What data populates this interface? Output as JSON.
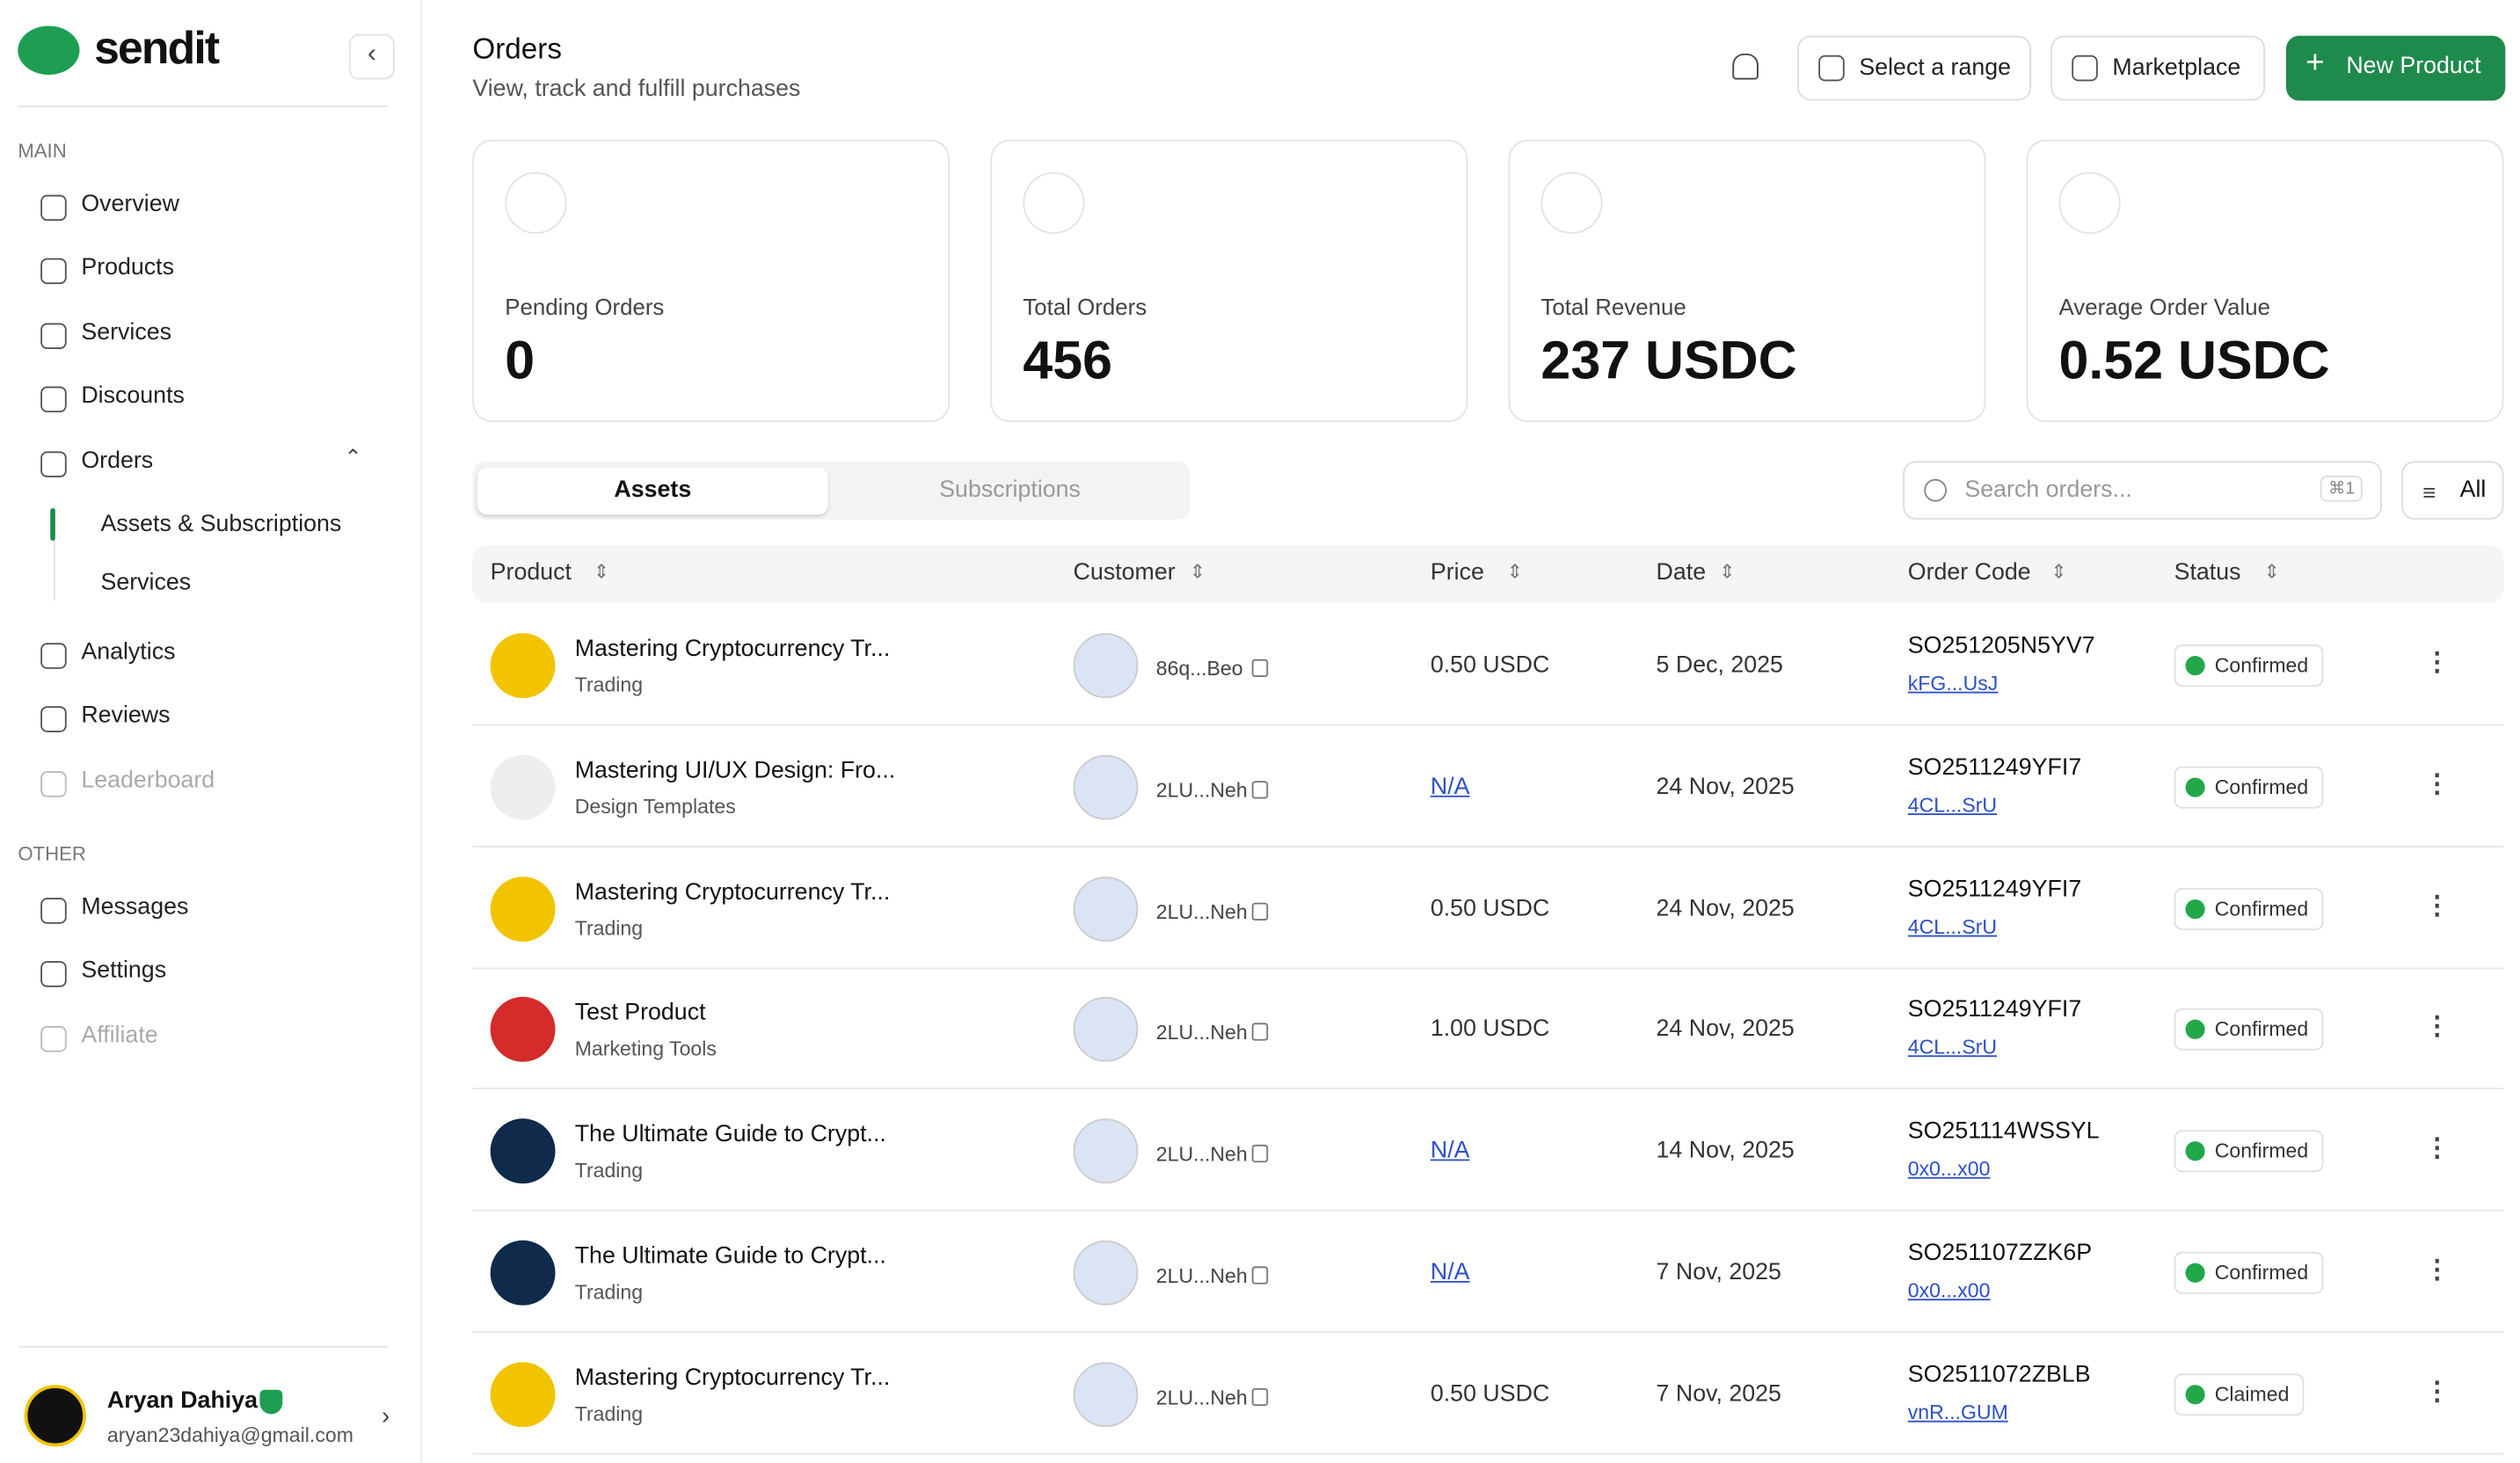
{
  "sidebar": {
    "brand": "sendit",
    "main_label": "MAIN",
    "main_items": [
      "Overview",
      "Products",
      "Services",
      "Discounts",
      "Orders"
    ],
    "orders_subitems": [
      "Assets & Subscriptions",
      "Services"
    ],
    "more_items": [
      "Analytics",
      "Reviews",
      "Leaderboard"
    ],
    "other_label": "OTHER",
    "other_items": [
      "Messages",
      "Settings",
      "Affiliate"
    ],
    "user": {
      "name": "Aryan Dahiya",
      "email": "aryan23dahiya@gmail.com"
    }
  },
  "header": {
    "title": "Orders",
    "subtitle": "View, track and fulfill purchases",
    "buttons": [
      "Select a range",
      "Marketplace",
      "New Product"
    ]
  },
  "stats": [
    {
      "label": "Pending Orders",
      "value": "0"
    },
    {
      "label": "Total Orders",
      "value": "456"
    },
    {
      "label": "Total Revenue",
      "value": "237 USDC"
    },
    {
      "label": "Average Order Value",
      "value": "0.52 USDC"
    }
  ],
  "tabs": [
    "Assets",
    "Subscriptions"
  ],
  "search": {
    "placeholder": "Search orders...",
    "shortcut": "⌘1"
  },
  "filter": "All",
  "table": {
    "columns": [
      "Product",
      "Customer",
      "Price",
      "Date",
      "Order Code",
      "Status"
    ],
    "rows": [
      {
        "product": "Mastering Cryptocurrency Tr...",
        "category": "Trading",
        "customer": "86q...Beo",
        "price": "0.50 USDC",
        "date": "5 Dec, 2025",
        "code": "SO251205N5YV7",
        "link": "kFG...UsJ",
        "status": "Confirmed"
      },
      {
        "product": "Mastering UI/UX Design: Fro...",
        "category": "Design Templates",
        "customer": "2LU...Neh",
        "price": "N/A",
        "date": "24 Nov, 2025",
        "code": "SO2511249YFI7",
        "link": "4CL...SrU",
        "status": "Confirmed"
      },
      {
        "product": "Mastering Cryptocurrency Tr...",
        "category": "Trading",
        "customer": "2LU...Neh",
        "price": "0.50 USDC",
        "date": "24 Nov, 2025",
        "code": "SO2511249YFI7",
        "link": "4CL...SrU",
        "status": "Confirmed"
      },
      {
        "product": "Test Product",
        "category": "Marketing Tools",
        "customer": "2LU...Neh",
        "price": "1.00 USDC",
        "date": "24 Nov, 2025",
        "code": "SO2511249YFI7",
        "link": "4CL...SrU",
        "status": "Confirmed"
      },
      {
        "product": "The Ultimate Guide to Crypt...",
        "category": "Trading",
        "customer": "2LU...Neh",
        "price": "N/A",
        "date": "14 Nov, 2025",
        "code": "SO251114WSSYL",
        "link": "0x0...x00",
        "status": "Confirmed"
      },
      {
        "product": "The Ultimate Guide to Crypt...",
        "category": "Trading",
        "customer": "2LU...Neh",
        "price": "N/A",
        "date": "7 Nov, 2025",
        "code": "SO251107ZZK6P",
        "link": "0x0...x00",
        "status": "Confirmed"
      },
      {
        "product": "Mastering Cryptocurrency Tr...",
        "category": "Trading",
        "customer": "2LU...Neh",
        "price": "0.50 USDC",
        "date": "7 Nov, 2025",
        "code": "SO2511072ZBLB",
        "link": "vnR...GUM",
        "status": "Claimed"
      }
    ]
  }
}
